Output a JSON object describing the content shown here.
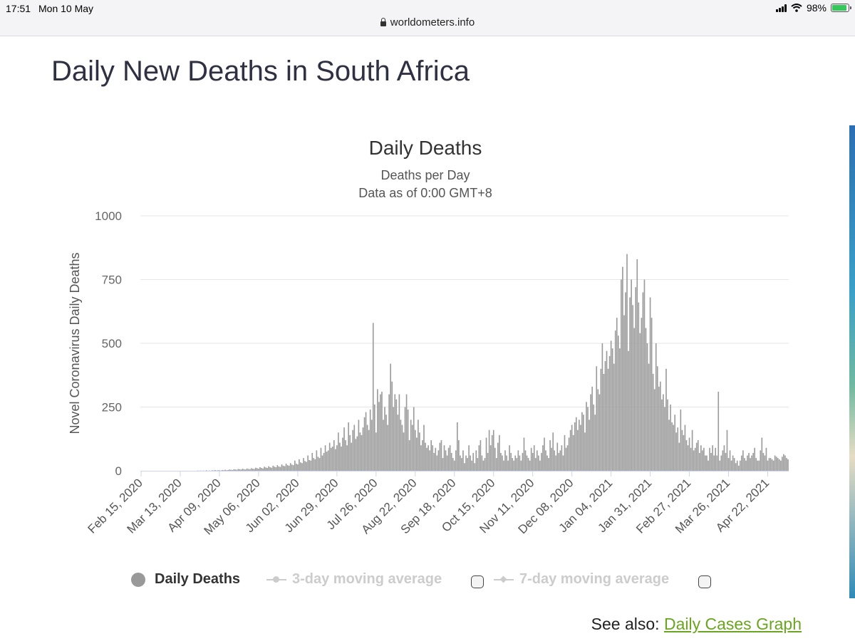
{
  "status_bar": {
    "time": "17:51",
    "date": "Mon 10 May",
    "url": "worldometers.info",
    "battery": "98%",
    "battery_fraction": 0.98
  },
  "page": {
    "title": "Daily New Deaths in South Africa"
  },
  "legend": {
    "deaths": "Daily Deaths",
    "ma3": "3-day moving average",
    "ma7": "7-day moving average"
  },
  "see_also": {
    "prefix": "See also:",
    "link": "Daily Cases Graph"
  },
  "colors": {
    "bar": "#9b9b9b",
    "grid": "#e6e6e6",
    "link": "#6aa520",
    "title": "#2f3142"
  },
  "chart_data": {
    "type": "bar",
    "title": "Daily Deaths",
    "subtitle_1": "Deaths per Day",
    "subtitle_2": "Data as of 0:00 GMT+8",
    "ylabel": "Novel Coronavirus Daily Deaths",
    "xlabel": "",
    "ylim": [
      0,
      1000
    ],
    "yticks": [
      0,
      250,
      500,
      750,
      1000
    ],
    "grid": true,
    "x_start": "Feb 15, 2020",
    "days_per_bar": 1,
    "xtick_labels": [
      "Feb 15, 2020",
      "Mar 13, 2020",
      "Apr 09, 2020",
      "May 06, 2020",
      "Jun 02, 2020",
      "Jun 29, 2020",
      "Jul 26, 2020",
      "Aug 22, 2020",
      "Sep 18, 2020",
      "Oct 15, 2020",
      "Nov 11, 2020",
      "Dec 08, 2020",
      "Jan 04, 2021",
      "Jan 31, 2021",
      "Feb 27, 2021",
      "Mar 26, 2021",
      "Apr 22, 2021"
    ],
    "xtick_index": [
      0,
      27,
      54,
      81,
      108,
      135,
      162,
      189,
      216,
      243,
      270,
      297,
      324,
      351,
      378,
      405,
      432
    ],
    "series": [
      {
        "name": "Daily Deaths",
        "values": [
          0,
          0,
          0,
          0,
          0,
          0,
          0,
          0,
          0,
          0,
          0,
          0,
          0,
          0,
          0,
          0,
          0,
          0,
          0,
          0,
          0,
          0,
          0,
          0,
          0,
          0,
          0,
          0,
          0,
          0,
          0,
          0,
          0,
          0,
          0,
          0,
          0,
          0,
          0,
          1,
          0,
          1,
          0,
          1,
          0,
          2,
          0,
          1,
          0,
          2,
          1,
          3,
          1,
          2,
          2,
          1,
          3,
          2,
          4,
          2,
          3,
          5,
          4,
          3,
          6,
          5,
          4,
          7,
          6,
          5,
          8,
          6,
          5,
          9,
          7,
          6,
          10,
          8,
          7,
          12,
          10,
          8,
          14,
          11,
          9,
          16,
          13,
          11,
          18,
          14,
          12,
          20,
          16,
          14,
          22,
          17,
          15,
          25,
          20,
          18,
          28,
          22,
          20,
          30,
          24,
          22,
          40,
          28,
          25,
          45,
          33,
          30,
          50,
          38,
          35,
          60,
          42,
          40,
          70,
          50,
          45,
          80,
          55,
          50,
          90,
          60,
          70,
          100,
          75,
          80,
          110,
          90,
          95,
          120,
          85,
          100,
          150,
          110,
          95,
          130,
          170,
          120,
          100,
          190,
          140,
          110,
          160,
          180,
          125,
          135,
          200,
          150,
          140,
          170,
          210,
          230,
          180,
          160,
          240,
          200,
          580,
          260,
          150,
          320,
          270,
          300,
          310,
          200,
          250,
          220,
          180,
          300,
          420,
          350,
          250,
          300,
          280,
          220,
          300,
          200,
          180,
          150,
          250,
          300,
          240,
          120,
          200,
          180,
          250,
          160,
          130,
          200,
          150,
          100,
          120,
          180,
          110,
          90,
          100,
          80,
          120,
          100,
          70,
          90,
          60,
          80,
          110,
          120,
          50,
          100,
          80,
          60,
          90,
          100,
          70,
          50,
          40,
          80,
          190,
          120,
          60,
          50,
          80,
          30,
          60,
          50,
          100,
          60,
          40,
          70,
          30,
          80,
          50,
          100,
          120,
          60,
          40,
          50,
          130,
          70,
          160,
          100,
          140,
          160,
          90,
          50,
          110,
          140,
          70,
          60,
          40,
          80,
          60,
          40,
          100,
          70,
          50,
          40,
          60,
          50,
          80,
          60,
          40,
          70,
          130,
          80,
          60,
          50,
          40,
          90,
          70,
          100,
          50,
          80,
          60,
          40,
          70,
          100,
          130,
          80,
          60,
          50,
          120,
          90,
          150,
          80,
          60,
          110,
          70,
          80,
          100,
          60,
          140,
          90,
          100,
          130,
          160,
          180,
          140,
          190,
          210,
          160,
          200,
          180,
          230,
          220,
          150,
          270,
          250,
          200,
          300,
          330,
          260,
          220,
          410,
          320,
          300,
          400,
          500,
          380,
          430,
          470,
          400,
          450,
          510,
          480,
          420,
          550,
          600,
          530,
          480,
          750,
          800,
          610,
          700,
          850,
          470,
          680,
          750,
          650,
          560,
          720,
          830,
          660,
          540,
          600,
          700,
          750,
          560,
          500,
          420,
          680,
          600,
          380,
          320,
          500,
          410,
          330,
          350,
          280,
          300,
          250,
          400,
          280,
          200,
          260,
          190,
          180,
          220,
          150,
          170,
          110,
          240,
          160,
          140,
          180,
          120,
          100,
          130,
          90,
          160,
          80,
          90,
          110,
          120,
          70,
          100,
          80,
          90,
          60,
          60,
          40,
          90,
          70,
          100,
          60,
          90,
          60,
          310,
          40,
          60,
          80,
          100,
          70,
          160,
          50,
          80,
          40,
          60,
          50,
          30,
          40,
          20,
          40,
          60,
          80,
          50,
          40,
          60,
          70,
          50,
          60,
          70,
          90,
          50,
          40,
          40,
          80,
          130,
          70,
          60,
          90,
          40,
          50,
          50,
          45,
          40,
          60,
          55,
          50,
          45,
          40,
          55,
          65,
          60,
          50,
          45
        ]
      }
    ]
  }
}
